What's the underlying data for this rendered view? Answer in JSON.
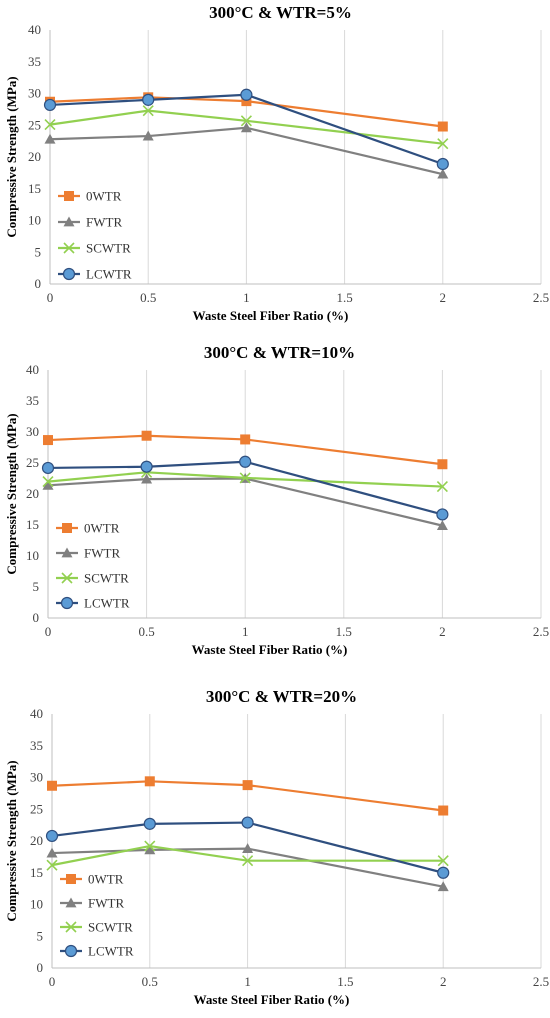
{
  "chart_data": [
    {
      "type": "line",
      "title": "300°C & WTR=5%",
      "xlabel": "Waste Steel Fiber Ratio (%)",
      "ylabel": "Compressive Strength (MPa)",
      "x": [
        0,
        0.5,
        1,
        2
      ],
      "xlim": [
        0,
        2.5
      ],
      "ylim": [
        0,
        40
      ],
      "xticks": [
        "0",
        "0.5",
        "1",
        "1.5",
        "2",
        "2.5"
      ],
      "yticks": [
        "0",
        "5",
        "10",
        "15",
        "20",
        "25",
        "30",
        "35",
        "40"
      ],
      "grid": "vertical",
      "legend": "left",
      "series": [
        {
          "name": "0WTR",
          "color": "#ed7d31",
          "marker": "square",
          "values": [
            28.7,
            29.4,
            28.8,
            24.8
          ]
        },
        {
          "name": "FWTR",
          "color": "#808080",
          "marker": "triangle",
          "values": [
            22.8,
            23.3,
            24.6,
            17.3
          ]
        },
        {
          "name": "SCWTR",
          "color": "#92d050",
          "marker": "x",
          "values": [
            25.1,
            27.3,
            25.7,
            22.1
          ]
        },
        {
          "name": "LCWTR",
          "color": "#5b9bd5",
          "line_color": "#2f4f7f",
          "marker": "circle",
          "values": [
            28.2,
            29.0,
            29.8,
            18.9
          ]
        }
      ]
    },
    {
      "type": "line",
      "title": "300°C & WTR=10%",
      "xlabel": "Waste Steel Fiber Ratio (%)",
      "ylabel": "Compressive Strength (MPa)",
      "x": [
        0,
        0.5,
        1,
        2
      ],
      "xlim": [
        0,
        2.5
      ],
      "ylim": [
        0,
        40
      ],
      "xticks": [
        "0",
        "0.5",
        "1",
        "1.5",
        "2",
        "2.5"
      ],
      "yticks": [
        "0",
        "5",
        "10",
        "15",
        "20",
        "25",
        "30",
        "35",
        "40"
      ],
      "grid": "vertical",
      "legend": "left",
      "series": [
        {
          "name": "0WTR",
          "color": "#ed7d31",
          "marker": "square",
          "values": [
            28.7,
            29.4,
            28.8,
            24.8
          ]
        },
        {
          "name": "FWTR",
          "color": "#808080",
          "marker": "triangle",
          "values": [
            21.4,
            22.4,
            22.5,
            14.9
          ]
        },
        {
          "name": "SCWTR",
          "color": "#92d050",
          "marker": "x",
          "values": [
            22.0,
            23.5,
            22.6,
            21.2
          ]
        },
        {
          "name": "LCWTR",
          "color": "#5b9bd5",
          "line_color": "#2f4f7f",
          "marker": "circle",
          "values": [
            24.2,
            24.4,
            25.2,
            16.7
          ]
        }
      ]
    },
    {
      "type": "line",
      "title": "300°C & WTR=20%",
      "xlabel": "Waste Steel Fiber Ratio (%)",
      "ylabel": "Compressive Strength (MPa)",
      "x": [
        0,
        0.5,
        1,
        2
      ],
      "xlim": [
        0,
        2.5
      ],
      "ylim": [
        0,
        40
      ],
      "xticks": [
        "0",
        "0.5",
        "1",
        "1.5",
        "2",
        "2.5"
      ],
      "yticks": [
        "0",
        "5",
        "10",
        "15",
        "20",
        "25",
        "30",
        "35",
        "40"
      ],
      "grid": "vertical",
      "legend": "left",
      "series": [
        {
          "name": "0WTR",
          "color": "#ed7d31",
          "marker": "square",
          "values": [
            28.7,
            29.4,
            28.8,
            24.8
          ]
        },
        {
          "name": "FWTR",
          "color": "#808080",
          "marker": "triangle",
          "values": [
            18.1,
            18.6,
            18.8,
            12.8
          ]
        },
        {
          "name": "SCWTR",
          "color": "#92d050",
          "marker": "x",
          "values": [
            16.2,
            19.2,
            16.9,
            16.9
          ]
        },
        {
          "name": "LCWTR",
          "color": "#5b9bd5",
          "line_color": "#2f4f7f",
          "marker": "circle",
          "values": [
            20.8,
            22.7,
            22.9,
            15.0
          ]
        }
      ]
    }
  ]
}
